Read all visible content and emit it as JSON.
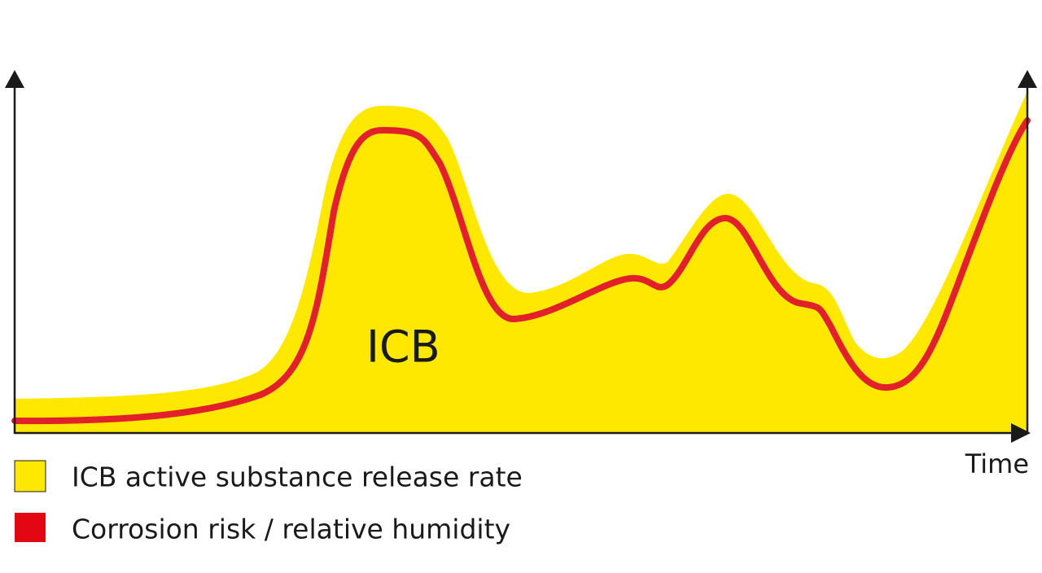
{
  "diagram": {
    "area_label": "ICB",
    "x_axis_label": "Time",
    "legend": [
      {
        "label": "ICB active substance release rate"
      },
      {
        "label": "Corrosion risk / relative humidity"
      }
    ]
  }
}
